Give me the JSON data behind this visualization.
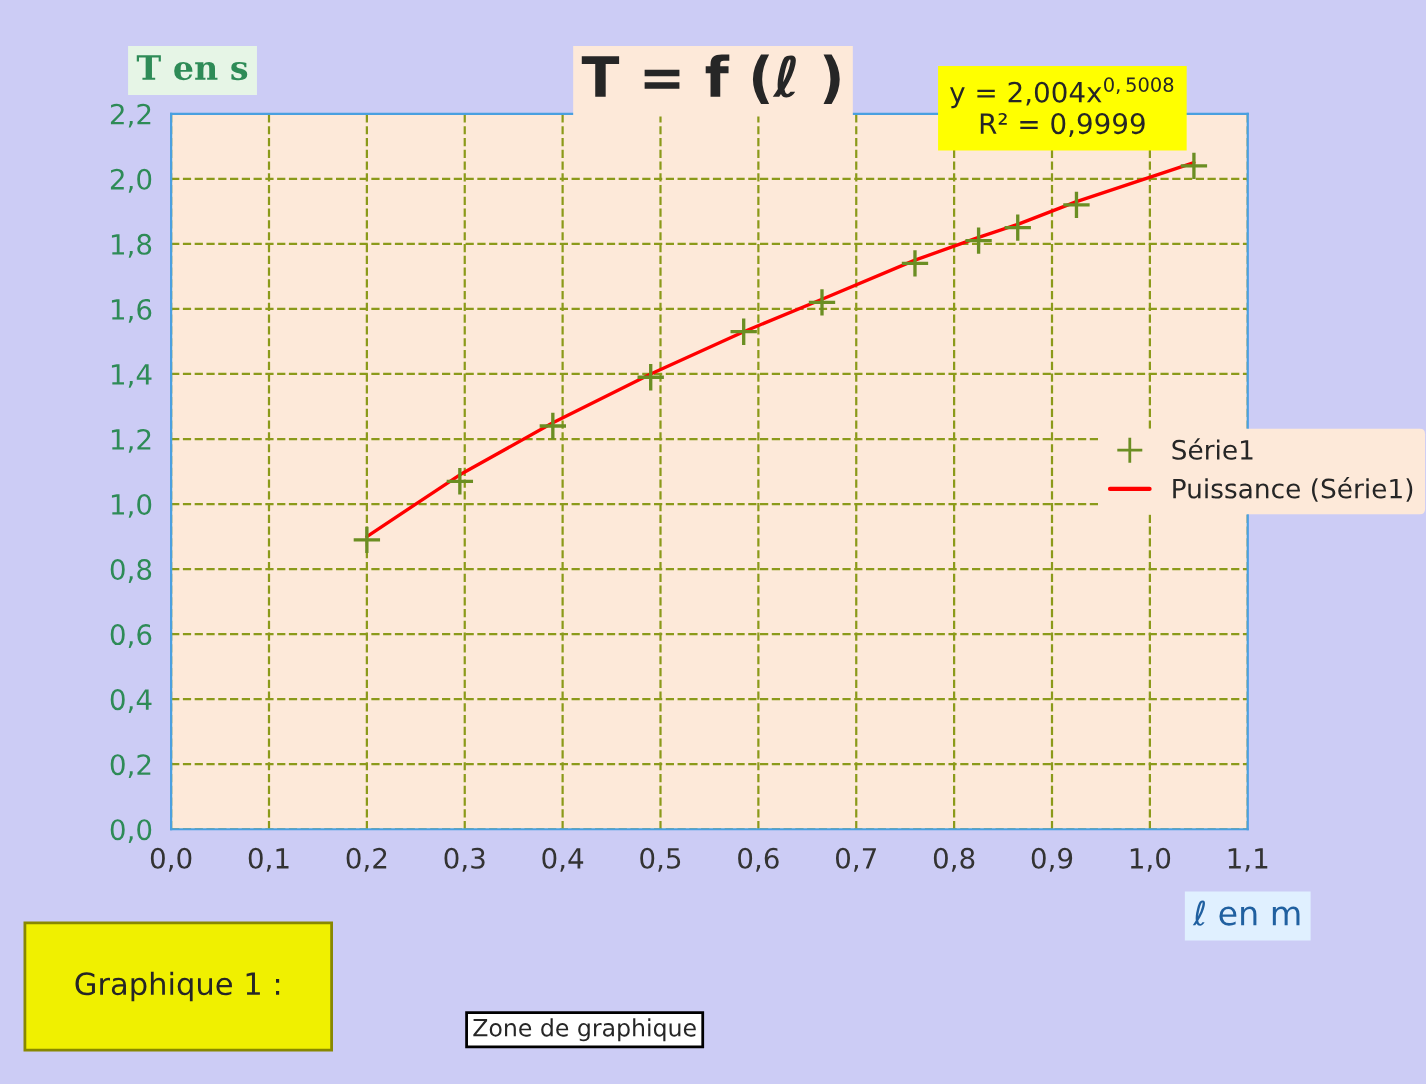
{
  "chart_data": {
    "type": "scatter",
    "title": "T = f (ℓ )",
    "xlabel": "ℓ en m",
    "ylabel": "T en s",
    "annotations": [
      "y = 2,004x$^{0,5008}$",
      "R² = 0,9999",
      "Graphique 1 :",
      "Zone de graphique"
    ],
    "series": [
      {
        "name": "Série1",
        "color": "#6b8e23",
        "marker": "cross",
        "x": [
          0.2,
          0.295,
          0.39,
          0.49,
          0.585,
          0.665,
          0.76,
          0.825,
          0.865,
          0.925,
          1.045
        ],
        "values": [
          0.89,
          1.07,
          1.24,
          1.39,
          1.53,
          1.62,
          1.74,
          1.81,
          1.85,
          1.92,
          2.04
        ]
      },
      {
        "name": "Puissance (Série1)",
        "type": "line",
        "color": "#ff0000",
        "line_style": "solid",
        "x": [
          0.2,
          0.295,
          0.39,
          0.49,
          0.585,
          0.665,
          0.76,
          0.825,
          0.865,
          0.925,
          1.045
        ],
        "values": [
          0.9,
          1.09,
          1.25,
          1.4,
          1.53,
          1.63,
          1.75,
          1.82,
          1.86,
          1.93,
          2.05
        ]
      }
    ],
    "xlim": [
      0,
      1.1
    ],
    "ylim": [
      0,
      2.2
    ],
    "xticks": [
      {
        "value": 0,
        "label": "0,0"
      },
      {
        "value": 0.1,
        "label": "0,1"
      },
      {
        "value": 0.2,
        "label": "0,2"
      },
      {
        "value": 0.3,
        "label": "0,3"
      },
      {
        "value": 0.4,
        "label": "0,4"
      },
      {
        "value": 0.5,
        "label": "0,5"
      },
      {
        "value": 0.6,
        "label": "0,6"
      },
      {
        "value": 0.7,
        "label": "0,7"
      },
      {
        "value": 0.8,
        "label": "0,8"
      },
      {
        "value": 0.9,
        "label": "0,9"
      },
      {
        "value": 1.0,
        "label": "1,0"
      },
      {
        "value": 1.1,
        "label": "1,1"
      }
    ],
    "yticks": [
      {
        "value": 0,
        "label": "0,0"
      },
      {
        "value": 0.2,
        "label": "0,2"
      },
      {
        "value": 0.4,
        "label": "0,4"
      },
      {
        "value": 0.6,
        "label": "0,6"
      },
      {
        "value": 0.8,
        "label": "0,8"
      },
      {
        "value": 1.0,
        "label": "1,0"
      },
      {
        "value": 1.2,
        "label": "1,2"
      },
      {
        "value": 1.4,
        "label": "1,4"
      },
      {
        "value": 1.6,
        "label": "1,6"
      },
      {
        "value": 1.8,
        "label": "1,8"
      },
      {
        "value": 2.0,
        "label": "2,0"
      },
      {
        "value": 2.2,
        "label": "2,2"
      }
    ],
    "grid": true,
    "legend": "right"
  }
}
